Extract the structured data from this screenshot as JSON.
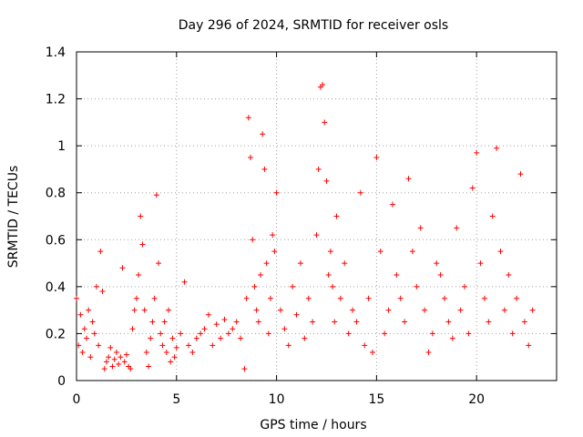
{
  "chart_data": {
    "type": "scatter",
    "title": "Day 296 of 2024, SRMTID for receiver osls",
    "xlabel": "GPS time / hours",
    "ylabel": "SRMTID / TECUs",
    "xlim": [
      0,
      24
    ],
    "ylim": [
      0,
      1.4
    ],
    "xticks": [
      0,
      5,
      10,
      15,
      20
    ],
    "xtick_labels": [
      "0",
      "5",
      "10",
      "15",
      "20"
    ],
    "yticks": [
      0,
      0.2,
      0.4,
      0.6,
      0.8,
      1,
      1.2,
      1.4
    ],
    "ytick_labels": [
      "0",
      "0.2",
      "0.4",
      "0.6",
      "0.8",
      "1",
      "1.2",
      "1.4"
    ],
    "grid": true,
    "marker": "plus",
    "color": "#ff0000",
    "series": [
      {
        "name": "SRMTID",
        "x": [
          0.0,
          0.1,
          0.2,
          0.3,
          0.4,
          0.5,
          0.6,
          0.7,
          0.8,
          0.9,
          1.0,
          1.1,
          1.2,
          1.3,
          1.4,
          1.5,
          1.6,
          1.7,
          1.8,
          1.9,
          2.0,
          2.1,
          2.2,
          2.3,
          2.4,
          2.5,
          2.6,
          2.7,
          2.8,
          2.9,
          3.0,
          3.1,
          3.2,
          3.3,
          3.4,
          3.5,
          3.6,
          3.7,
          3.8,
          3.9,
          4.0,
          4.1,
          4.2,
          4.3,
          4.4,
          4.5,
          4.6,
          4.7,
          4.8,
          4.9,
          5.0,
          5.2,
          5.4,
          5.6,
          5.8,
          6.0,
          6.2,
          6.4,
          6.6,
          6.8,
          7.0,
          7.2,
          7.4,
          7.6,
          7.8,
          8.0,
          8.2,
          8.4,
          8.5,
          8.6,
          8.7,
          8.8,
          8.9,
          9.0,
          9.1,
          9.2,
          9.3,
          9.4,
          9.5,
          9.6,
          9.7,
          9.8,
          9.9,
          10.0,
          10.2,
          10.4,
          10.6,
          10.8,
          11.0,
          11.2,
          11.4,
          11.6,
          11.8,
          12.0,
          12.1,
          12.2,
          12.3,
          12.4,
          12.5,
          12.6,
          12.7,
          12.8,
          12.9,
          13.0,
          13.2,
          13.4,
          13.6,
          13.8,
          14.0,
          14.2,
          14.4,
          14.6,
          14.8,
          15.0,
          15.2,
          15.4,
          15.6,
          15.8,
          16.0,
          16.2,
          16.4,
          16.6,
          16.8,
          17.0,
          17.2,
          17.4,
          17.6,
          17.8,
          18.0,
          18.2,
          18.4,
          18.6,
          18.8,
          19.0,
          19.2,
          19.4,
          19.6,
          19.8,
          20.0,
          20.2,
          20.4,
          20.6,
          20.8,
          21.0,
          21.2,
          21.4,
          21.6,
          21.8,
          22.0,
          22.2,
          22.4,
          22.6,
          22.8
        ],
        "y": [
          0.35,
          0.15,
          0.28,
          0.12,
          0.22,
          0.18,
          0.3,
          0.1,
          0.25,
          0.2,
          0.4,
          0.15,
          0.55,
          0.38,
          0.05,
          0.08,
          0.1,
          0.14,
          0.06,
          0.09,
          0.12,
          0.07,
          0.1,
          0.48,
          0.08,
          0.11,
          0.06,
          0.05,
          0.22,
          0.3,
          0.35,
          0.45,
          0.7,
          0.58,
          0.3,
          0.12,
          0.06,
          0.18,
          0.25,
          0.35,
          0.79,
          0.5,
          0.2,
          0.15,
          0.25,
          0.12,
          0.3,
          0.08,
          0.18,
          0.1,
          0.14,
          0.2,
          0.42,
          0.15,
          0.12,
          0.18,
          0.2,
          0.22,
          0.28,
          0.15,
          0.24,
          0.18,
          0.26,
          0.2,
          0.22,
          0.25,
          0.18,
          0.05,
          0.35,
          1.12,
          0.95,
          0.6,
          0.4,
          0.3,
          0.25,
          0.45,
          1.05,
          0.9,
          0.5,
          0.2,
          0.35,
          0.62,
          0.55,
          0.8,
          0.3,
          0.22,
          0.15,
          0.4,
          0.28,
          0.5,
          0.18,
          0.35,
          0.25,
          0.62,
          0.9,
          1.25,
          1.26,
          1.1,
          0.85,
          0.45,
          0.55,
          0.4,
          0.25,
          0.7,
          0.35,
          0.5,
          0.2,
          0.3,
          0.25,
          0.8,
          0.15,
          0.35,
          0.12,
          0.95,
          0.55,
          0.2,
          0.3,
          0.75,
          0.45,
          0.35,
          0.25,
          0.86,
          0.55,
          0.4,
          0.65,
          0.3,
          0.12,
          0.2,
          0.5,
          0.45,
          0.35,
          0.25,
          0.18,
          0.65,
          0.3,
          0.4,
          0.2,
          0.82,
          0.97,
          0.5,
          0.35,
          0.25,
          0.7,
          0.99,
          0.55,
          0.3,
          0.45,
          0.2,
          0.35,
          0.88,
          0.25,
          0.15,
          0.3
        ]
      }
    ]
  }
}
